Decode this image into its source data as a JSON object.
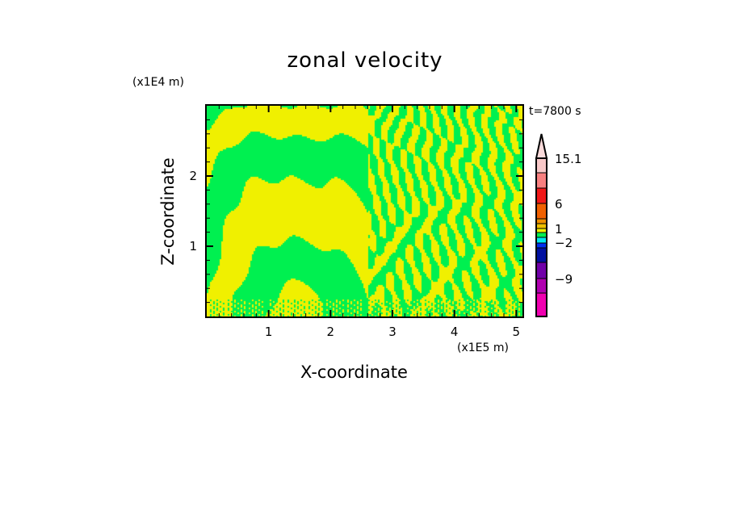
{
  "chart_data": {
    "type": "heatmap",
    "title": "zonal velocity",
    "xlabel": "X-coordinate",
    "ylabel": "Z-coordinate",
    "x_scale_label": "(x1E5 m)",
    "y_scale_label": "(x1E4 m)",
    "time_label": "t=7800 s",
    "xlim": [
      0,
      5.1
    ],
    "ylim": [
      0,
      3.0
    ],
    "xticks": [
      1,
      2,
      3,
      4,
      5
    ],
    "yticks": [
      1,
      2
    ],
    "xtick_labels": [
      "1",
      "2",
      "3",
      "4",
      "5"
    ],
    "ytick_labels": [
      "1",
      "2"
    ],
    "colorbar": {
      "labels": [
        {
          "value": 15.1,
          "text": "15.1"
        },
        {
          "value": 6,
          "text": "6"
        },
        {
          "value": 1,
          "text": "1"
        },
        {
          "value": -2,
          "text": "-2"
        },
        {
          "value": -9,
          "text": "-9"
        }
      ],
      "colors_top_to_bottom": [
        "#f8c8c8",
        "#f88080",
        "#f01818",
        "#f06000",
        "#f09000",
        "#f0c000",
        "#f0f000",
        "#00f050",
        "#00e8f0",
        "#0030f0",
        "#0010a0",
        "#7000a8",
        "#b000b0",
        "#f000b0"
      ],
      "extend_top": true
    },
    "dominant_levels": [
      "#f0f000",
      "#00f050"
    ],
    "grid": false
  }
}
